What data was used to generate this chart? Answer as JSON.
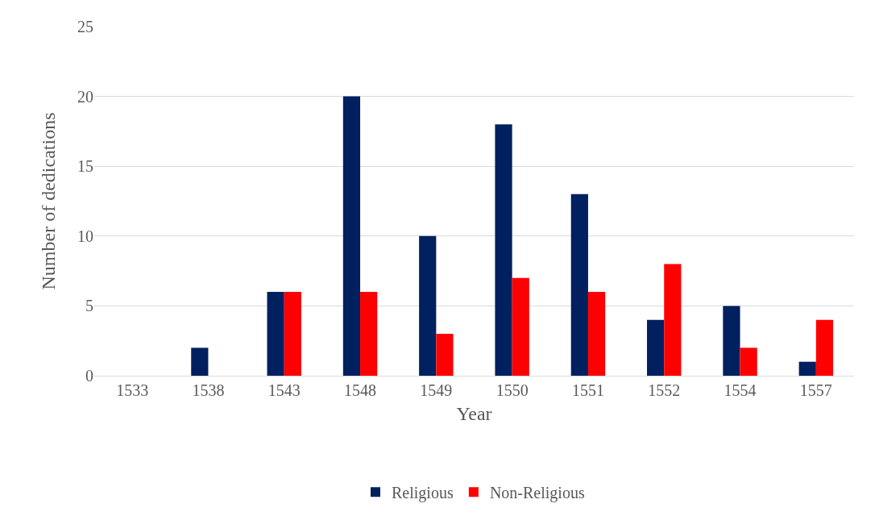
{
  "chart_data": {
    "type": "bar",
    "xlabel": "Year",
    "ylabel": "Number of dedications",
    "categories": [
      "1533",
      "1538",
      "1543",
      "1548",
      "1549",
      "1550",
      "1551",
      "1552",
      "1554",
      "1557"
    ],
    "series": [
      {
        "name": "Religious",
        "color": "#002060",
        "values": [
          0,
          2,
          6,
          20,
          10,
          18,
          13,
          4,
          5,
          1
        ]
      },
      {
        "name": "Non-Religious",
        "color": "#ff0000",
        "values": [
          0,
          0,
          6,
          6,
          3,
          7,
          6,
          8,
          2,
          4
        ]
      }
    ],
    "ylim": [
      0,
      25
    ],
    "yticks": [
      0,
      5,
      10,
      15,
      20,
      25
    ],
    "grid": "y",
    "legend": "bottom"
  }
}
